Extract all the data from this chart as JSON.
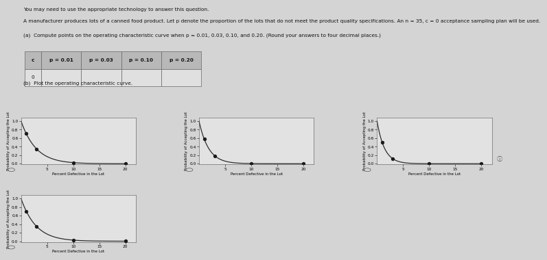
{
  "title_text": "You may need to use the appropriate technology to answer this question.",
  "problem_text": "A manufacturer produces lots of a canned food product. Let p denote the proportion of the lots that do not meet the product quality specifications. An n = 35, c = 0 acceptance sampling plan will be used.",
  "part_a_text": "(a)  Compute points on the operating characteristic curve when p = 0.01, 0.03, 0.10, and 0.20. (Round your answers to four decimal places.)",
  "part_b_text": "(b)  Plot the operating characteristic curve.",
  "table_headers": [
    "c",
    "p = 0.01",
    "p = 0.03",
    "p = 0.10",
    "p = 0.20"
  ],
  "table_c_value": "0",
  "n": 35,
  "c": 0,
  "p_values": [
    0.01,
    0.03,
    0.1,
    0.2
  ],
  "oc_values": [
    0.7041,
    0.343,
    0.0388,
    0.0004
  ],
  "xlabel": "Percent Defective in the Lot",
  "ylabel": "Probability of Accepting the Lot",
  "xlim": [
    0,
    22
  ],
  "ylim": [
    -0.02,
    1.08
  ],
  "yticks": [
    0.0,
    0.2,
    0.4,
    0.6,
    0.8,
    1.0
  ],
  "xticks": [
    5,
    10,
    15,
    20
  ],
  "line_color": "#2c2c2c",
  "marker_color": "#1a1a1a",
  "bg_color": "#d4d4d4"
}
